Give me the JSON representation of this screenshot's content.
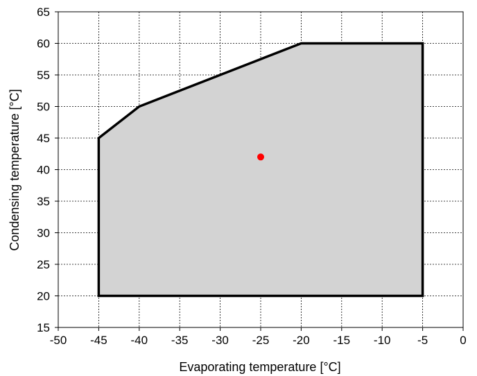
{
  "chart_data": {
    "type": "area",
    "xlabel": "Evaporating temperature [°C]",
    "ylabel": "Condensing temperature [°C]",
    "xlim": [
      -50,
      0
    ],
    "ylim": [
      15,
      65
    ],
    "xticks": [
      -50,
      -45,
      -40,
      -35,
      -30,
      -25,
      -20,
      -15,
      -10,
      -5,
      0
    ],
    "yticks": [
      15,
      20,
      25,
      30,
      35,
      40,
      45,
      50,
      55,
      60,
      65
    ],
    "grid": true,
    "envelope": {
      "x": [
        -45,
        -45,
        -40,
        -35,
        -30,
        -25,
        -20,
        -5,
        -5,
        -45
      ],
      "y": [
        20,
        45,
        50,
        52.5,
        55,
        57.5,
        60,
        60,
        20,
        20
      ]
    },
    "operating_point": {
      "x": -25,
      "y": 42
    },
    "colors": {
      "envelope_fill": "#d3d3d3",
      "envelope_stroke": "#000000",
      "point": "#ff0000",
      "grid": "#000000"
    }
  }
}
